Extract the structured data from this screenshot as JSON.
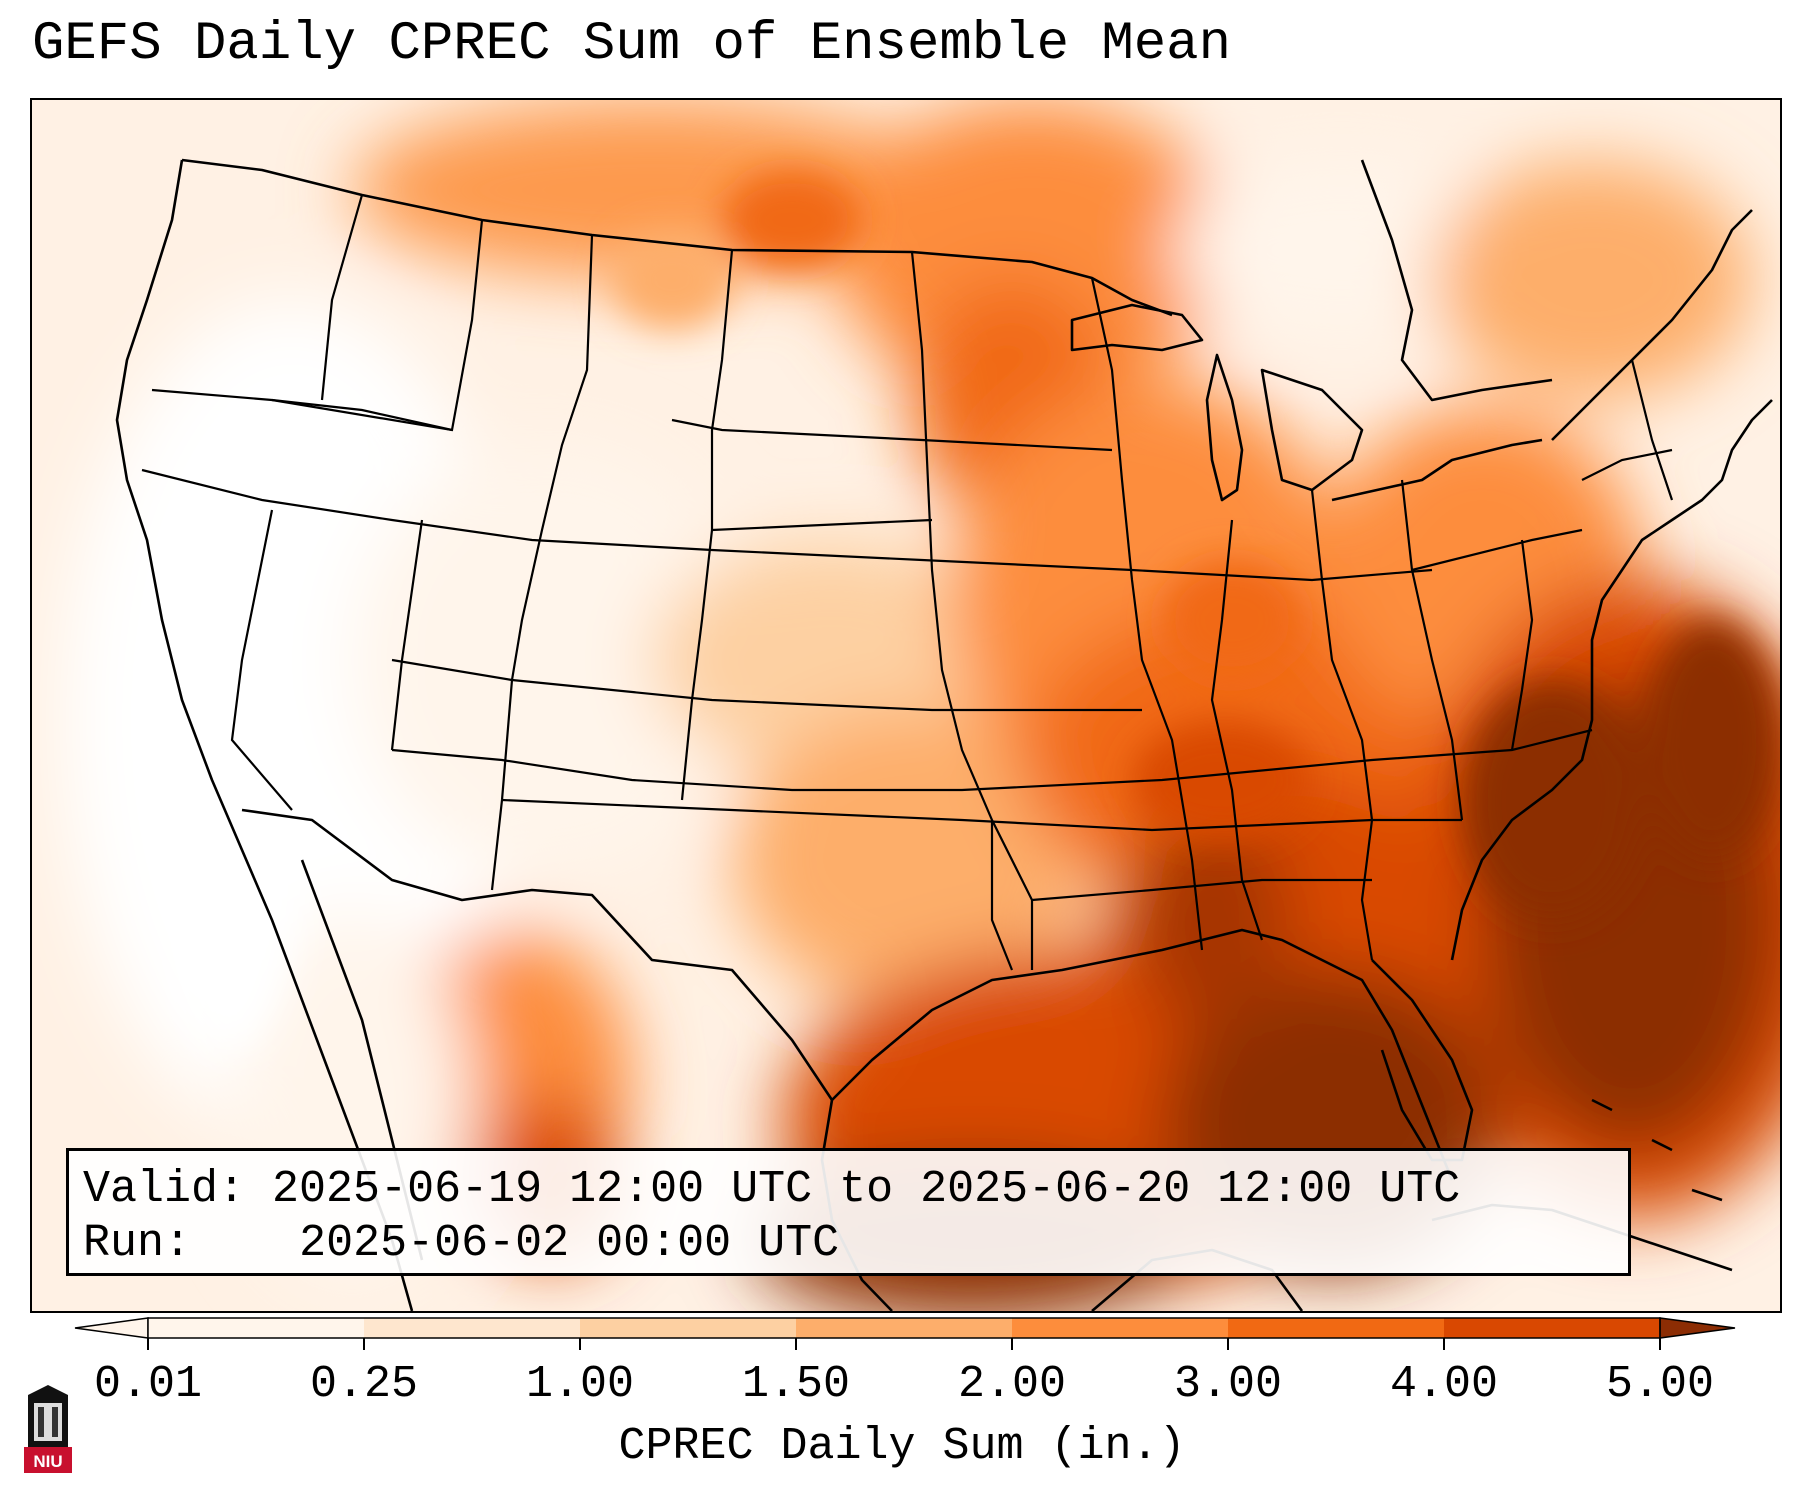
{
  "title": "GEFS Daily CPREC Sum of Ensemble Mean",
  "info": {
    "valid_label": "Valid:",
    "valid_value": "2025-06-19 12:00 UTC to 2025-06-20 12:00 UTC",
    "run_label": "Run:",
    "run_value": "2025-06-02 00:00 UTC"
  },
  "colorbar": {
    "label": "CPREC Daily Sum (in.)",
    "ticks": [
      "0.01",
      "0.25",
      "1.00",
      "1.50",
      "2.00",
      "3.00",
      "4.00",
      "5.00"
    ],
    "colors": [
      "#fff5eb",
      "#fee6ce",
      "#fdd0a2",
      "#fdae6b",
      "#fd8d3c",
      "#f16913",
      "#d94801",
      "#8c2d04"
    ],
    "extend": "both"
  },
  "map": {
    "projection": "Lambert Conformal (CONUS)",
    "overlays": [
      "state-borders",
      "country-borders",
      "coastlines"
    ],
    "precip_cores": [
      "Southeast US / Gulf of Mexico",
      "Western Atlantic off Carolinas"
    ]
  },
  "logo": {
    "text": "NIU",
    "icon": "university-tower-icon"
  }
}
